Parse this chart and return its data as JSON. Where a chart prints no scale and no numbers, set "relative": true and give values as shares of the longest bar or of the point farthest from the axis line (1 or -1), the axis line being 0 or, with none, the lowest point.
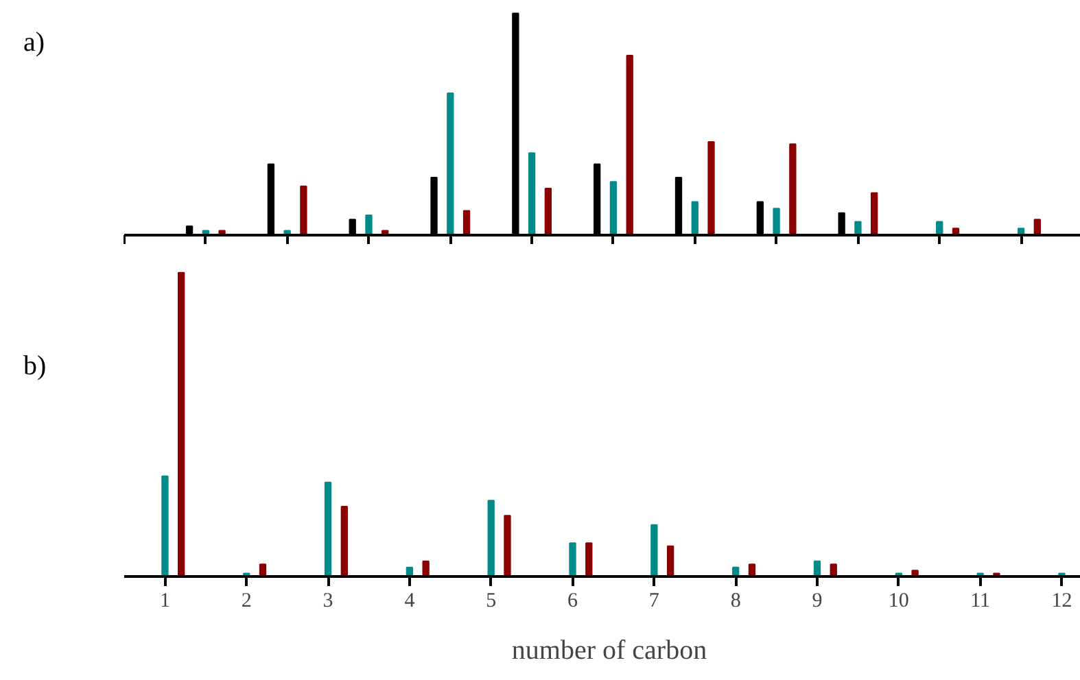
{
  "chart_data": [
    {
      "type": "bar",
      "title": "a)",
      "relative": true,
      "grid": false,
      "tick_labels": false,
      "xlim": [
        0.5,
        12.4
      ],
      "xticks": [
        {
          "value": 0.5,
          "label": null
        },
        {
          "value": 1.5,
          "label": null
        },
        {
          "value": 2.5,
          "label": null
        },
        {
          "value": 3.5,
          "label": null
        },
        {
          "value": 4.5,
          "label": null
        },
        {
          "value": 5.5,
          "label": null
        },
        {
          "value": 6.5,
          "label": null
        },
        {
          "value": 7.5,
          "label": null
        },
        {
          "value": 8.5,
          "label": null
        },
        {
          "value": 9.5,
          "label": null
        },
        {
          "value": 10.5,
          "label": null
        },
        {
          "value": 11.5,
          "label": null
        }
      ],
      "series": [
        {
          "color": "#000000",
          "x": [
            1.3,
            2.3,
            3.3,
            4.3,
            5.3,
            6.3,
            7.3,
            8.3,
            9.3
          ],
          "values": [
            0.04,
            0.32,
            0.07,
            0.26,
            1.0,
            0.32,
            0.26,
            0.15,
            0.1
          ]
        },
        {
          "color": "#008b8b",
          "x": [
            1.5,
            2.5,
            3.5,
            4.5,
            5.5,
            6.5,
            7.5,
            8.5,
            9.5,
            10.5,
            11.5
          ],
          "values": [
            0.02,
            0.02,
            0.09,
            0.64,
            0.37,
            0.24,
            0.15,
            0.12,
            0.06,
            0.06,
            0.03
          ]
        },
        {
          "color": "#8b0000",
          "x": [
            1.7,
            2.7,
            3.7,
            4.7,
            5.7,
            6.7,
            7.7,
            8.7,
            9.7,
            10.7,
            11.7
          ],
          "values": [
            0.02,
            0.22,
            0.02,
            0.11,
            0.21,
            0.81,
            0.42,
            0.41,
            0.19,
            0.03,
            0.07
          ]
        }
      ]
    },
    {
      "type": "bar",
      "title": "b)",
      "xlabel": "number of carbon",
      "relative": true,
      "grid": false,
      "tick_labels": "x",
      "xlim": [
        0.5,
        12.4
      ],
      "xticks": [
        1,
        2,
        3,
        4,
        5,
        6,
        7,
        8,
        9,
        10,
        11,
        12
      ],
      "series": [
        {
          "color": "#008b8b",
          "x": [
            1,
            2,
            3,
            4,
            5,
            6,
            7,
            8,
            9,
            10,
            11,
            12
          ],
          "values": [
            0.33,
            0.01,
            0.31,
            0.03,
            0.25,
            0.11,
            0.17,
            0.03,
            0.05,
            0.01,
            0.01,
            0.01
          ]
        },
        {
          "color": "#8b0000",
          "x": [
            1.2,
            2.2,
            3.2,
            4.2,
            5.2,
            6.2,
            7.2,
            8.2,
            9.2,
            10.2,
            11.2
          ],
          "values": [
            1.0,
            0.04,
            0.23,
            0.05,
            0.2,
            0.11,
            0.1,
            0.04,
            0.04,
            0.02,
            0.01
          ]
        }
      ]
    }
  ]
}
